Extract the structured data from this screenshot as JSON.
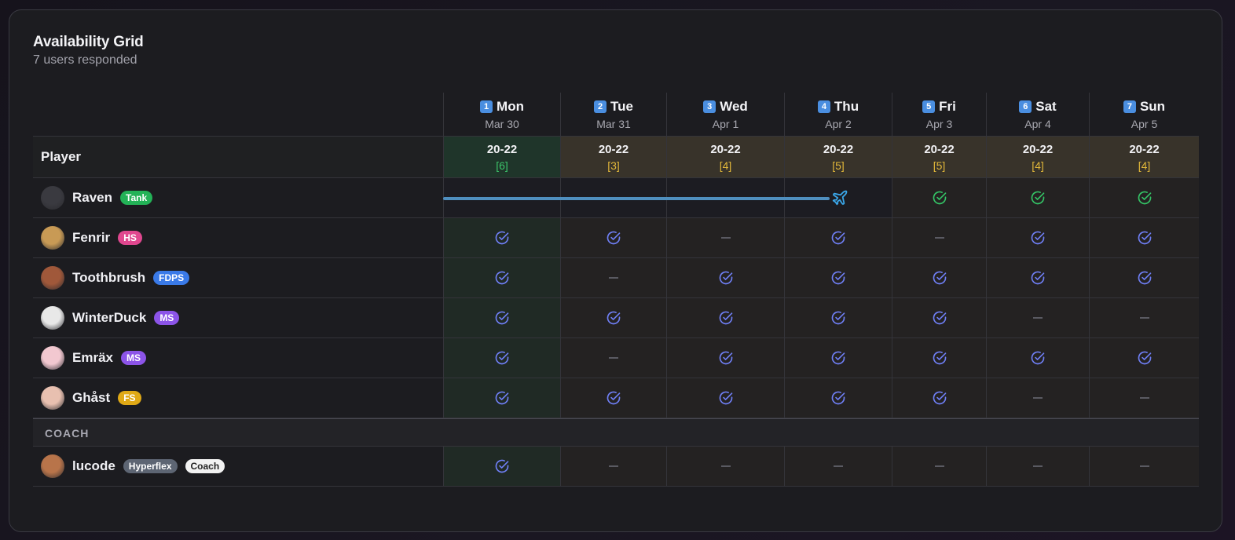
{
  "card": {
    "title": "Availability Grid",
    "subtitle": "7 users responded"
  },
  "player_header": "Player",
  "section_coach": "COACH",
  "days": [
    {
      "num": "1",
      "name": "Mon",
      "date": "Mar 30",
      "time": "20-22",
      "count": "[6]",
      "tone": "green"
    },
    {
      "num": "2",
      "name": "Tue",
      "date": "Mar 31",
      "time": "20-22",
      "count": "[3]",
      "tone": "yellow"
    },
    {
      "num": "3",
      "name": "Wed",
      "date": "Apr 1",
      "time": "20-22",
      "count": "[4]",
      "tone": "yellow"
    },
    {
      "num": "4",
      "name": "Thu",
      "date": "Apr 2",
      "time": "20-22",
      "count": "[5]",
      "tone": "yellow"
    },
    {
      "num": "5",
      "name": "Fri",
      "date": "Apr 3",
      "time": "20-22",
      "count": "[5]",
      "tone": "yellow"
    },
    {
      "num": "6",
      "name": "Sat",
      "date": "Apr 4",
      "time": "20-22",
      "count": "[4]",
      "tone": "yellow"
    },
    {
      "num": "7",
      "name": "Sun",
      "date": "Apr 5",
      "time": "20-22",
      "count": "[4]",
      "tone": "yellow"
    }
  ],
  "players": [
    {
      "name": "Raven",
      "badges": [
        {
          "label": "Tank",
          "tone": "green"
        }
      ],
      "avatar": "#3a3a40",
      "cells": [
        "travel",
        "travel",
        "travel",
        "travel-end",
        "green",
        "green",
        "green"
      ]
    },
    {
      "name": "Fenrir",
      "badges": [
        {
          "label": "HS",
          "tone": "pink"
        }
      ],
      "avatar": "#c89a55",
      "cells": [
        "blue",
        "blue",
        "dash",
        "blue",
        "dash",
        "blue",
        "blue"
      ]
    },
    {
      "name": "Toothbrush",
      "badges": [
        {
          "label": "FDPS",
          "tone": "blue"
        }
      ],
      "avatar": "#a0583a",
      "cells": [
        "blue",
        "dash",
        "blue",
        "blue",
        "blue",
        "blue",
        "blue"
      ]
    },
    {
      "name": "WinterDuck",
      "badges": [
        {
          "label": "MS",
          "tone": "purple"
        }
      ],
      "avatar": "#e8e8e8",
      "cells": [
        "blue",
        "blue",
        "blue",
        "blue",
        "blue",
        "dash",
        "dash"
      ]
    },
    {
      "name": "Emräx",
      "badges": [
        {
          "label": "MS",
          "tone": "purple"
        }
      ],
      "avatar": "#f2c8d0",
      "cells": [
        "blue",
        "dash",
        "blue",
        "blue",
        "blue",
        "blue",
        "blue"
      ]
    },
    {
      "name": "Ghåst",
      "badges": [
        {
          "label": "FS",
          "tone": "yellow"
        }
      ],
      "avatar": "#e8c0b0",
      "cells": [
        "blue",
        "blue",
        "blue",
        "blue",
        "blue",
        "dash",
        "dash"
      ]
    }
  ],
  "coaches": [
    {
      "name": "lucode",
      "badges": [
        {
          "label": "Hyperflex",
          "tone": "gray"
        },
        {
          "label": "Coach",
          "tone": "white"
        }
      ],
      "avatar": "#b8744a",
      "cells": [
        "blue",
        "dash",
        "dash",
        "dash",
        "dash",
        "dash",
        "dash"
      ]
    }
  ],
  "colors": {
    "check_blue": "#6f7ff5",
    "check_green": "#34c466",
    "plane": "#3aa6e8"
  }
}
